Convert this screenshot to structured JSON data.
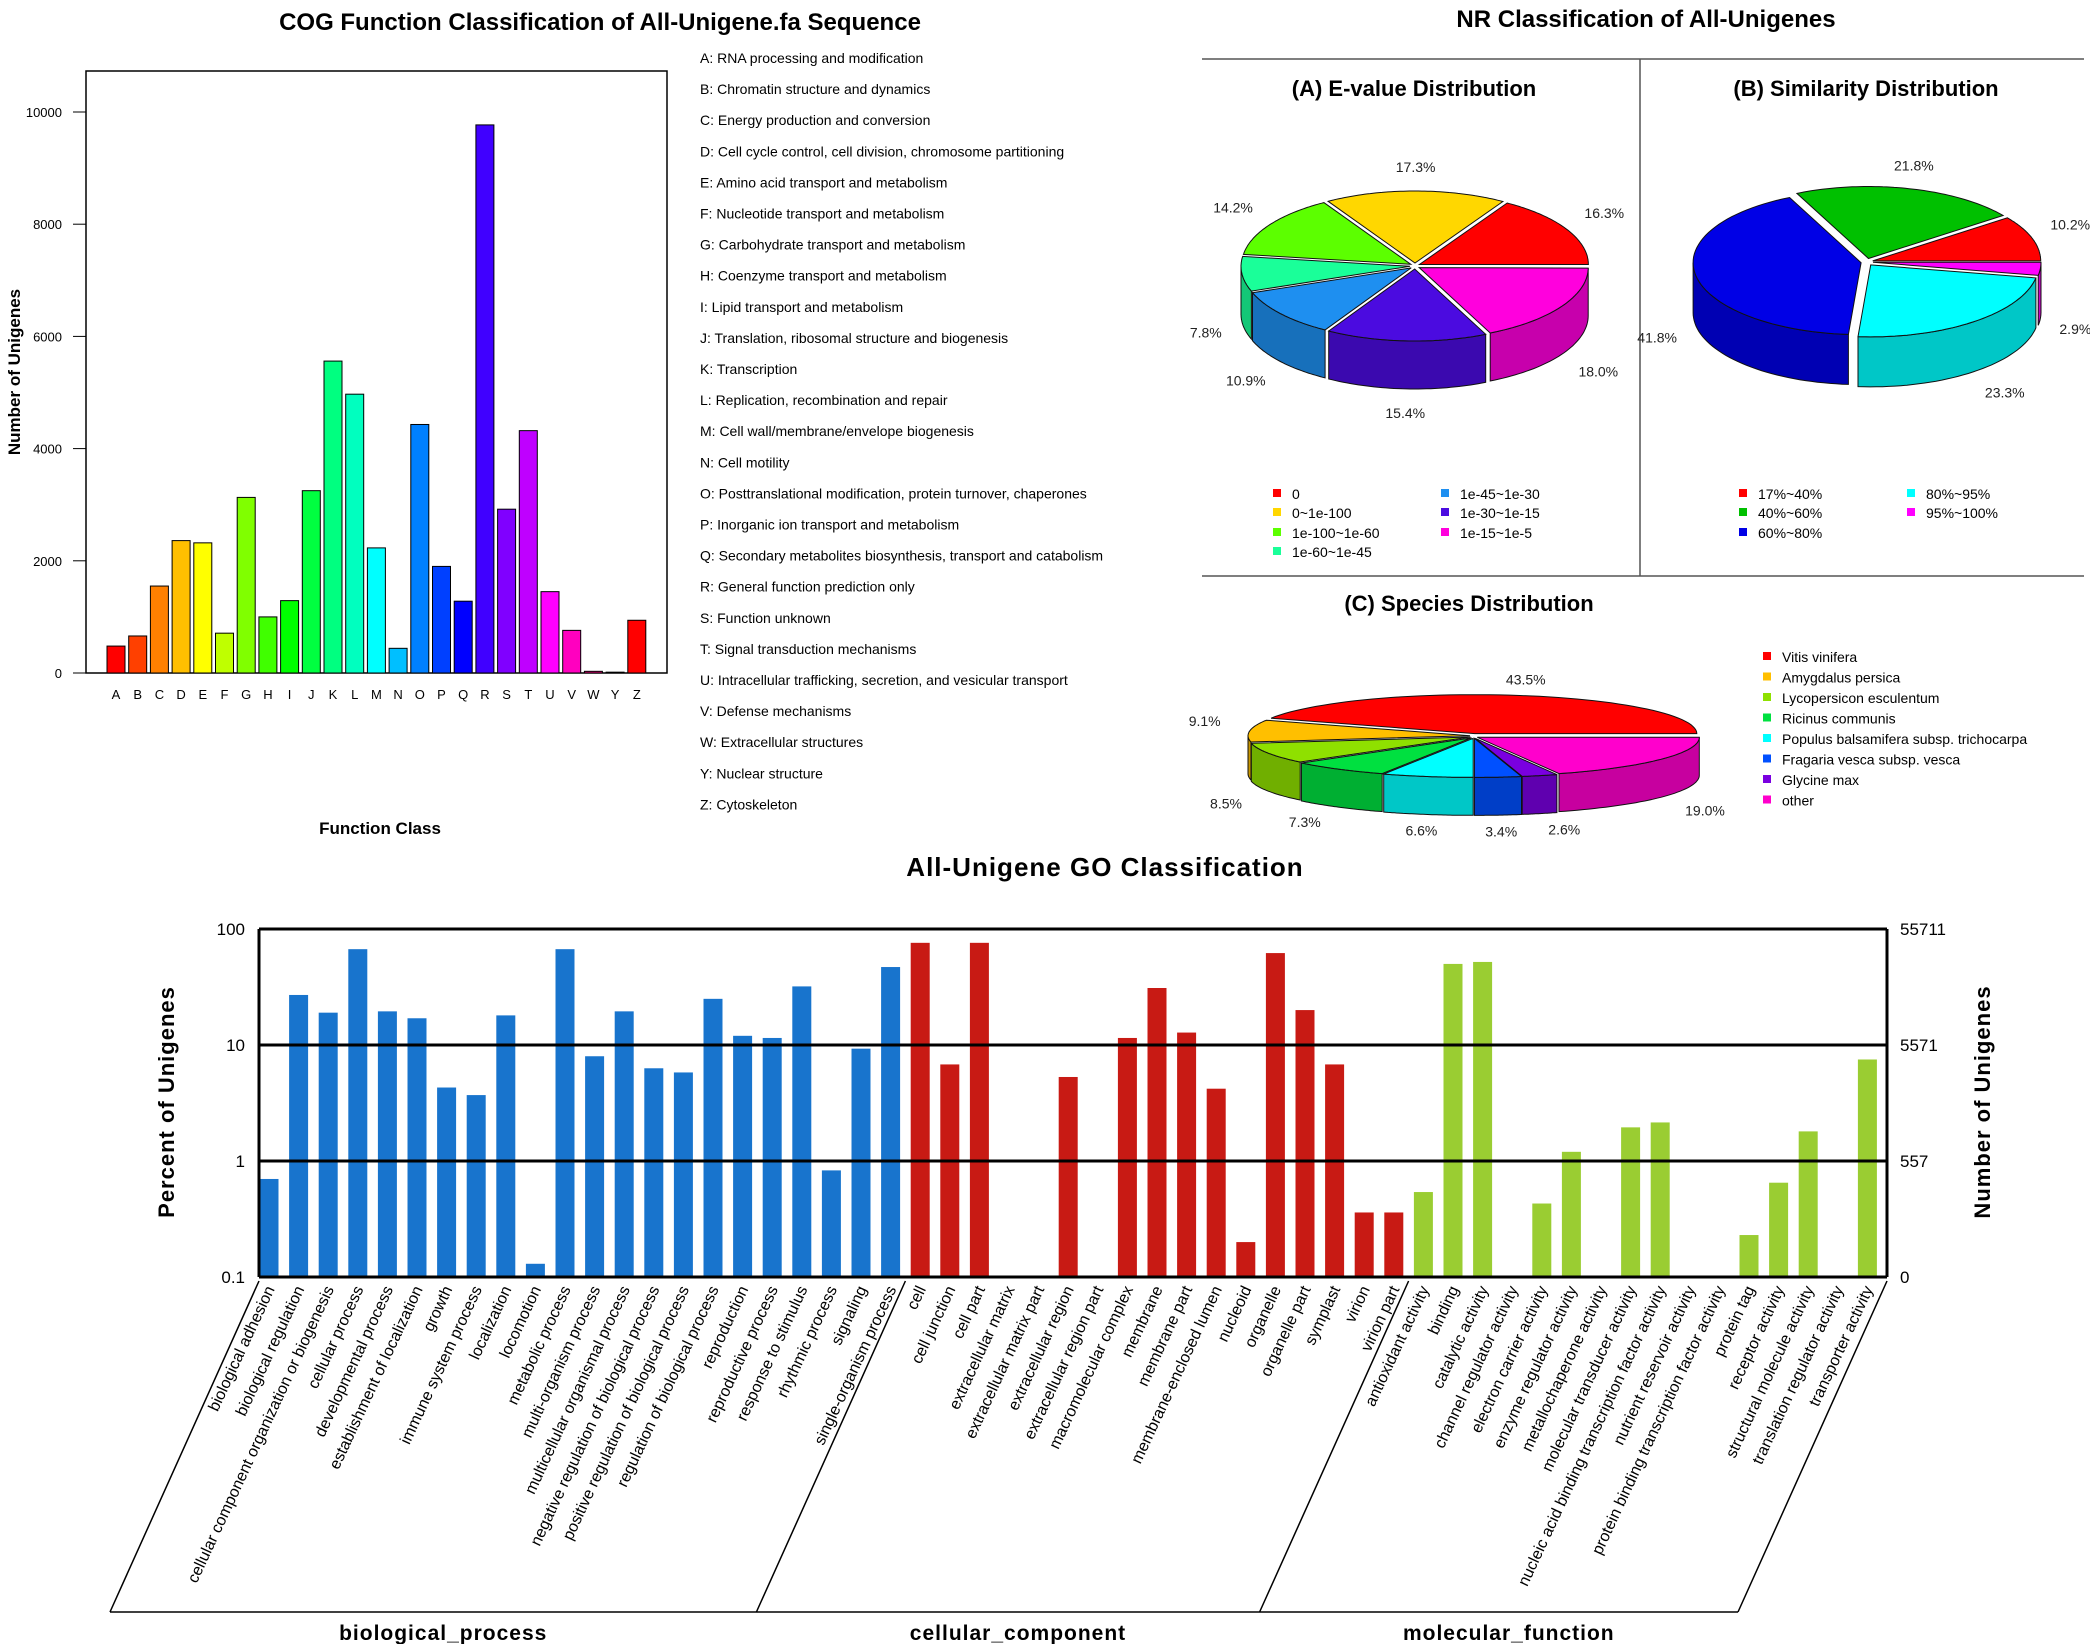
{
  "nr_title": "NR Classification of All-Unigenes",
  "chart_data": [
    {
      "type": "bar",
      "title": "COG Function Classification of All-Unigene.fa Sequence",
      "xlabel": "Function Class",
      "ylabel": "Number of Unigenes",
      "ylim": [
        0,
        10800
      ],
      "yticks": [
        "0",
        "2000",
        "4000",
        "6000",
        "8000",
        "10000"
      ],
      "categories": [
        "A",
        "B",
        "C",
        "D",
        "E",
        "F",
        "G",
        "H",
        "I",
        "J",
        "K",
        "L",
        "M",
        "N",
        "O",
        "P",
        "Q",
        "R",
        "S",
        "T",
        "U",
        "V",
        "W",
        "Y",
        "Z"
      ],
      "values": [
        480,
        660,
        1550,
        2360,
        2320,
        710,
        3130,
        1000,
        1290,
        3250,
        5560,
        4970,
        2230,
        440,
        4430,
        1900,
        1280,
        9770,
        2920,
        4320,
        1450,
        760,
        30,
        15,
        940
      ],
      "colors": [
        "#ff0000",
        "#ff4000",
        "#ff8000",
        "#ffbf00",
        "#ffff00",
        "#bfff00",
        "#80ff00",
        "#40ff00",
        "#00ff00",
        "#00ff40",
        "#00ff80",
        "#00ffbf",
        "#00ffff",
        "#00bfff",
        "#0080ff",
        "#0040ff",
        "#0000ff",
        "#4000ff",
        "#8000ff",
        "#bf00ff",
        "#ff00ff",
        "#ff00bf",
        "#ff0080",
        "#ff0040",
        "#ff0000"
      ],
      "legend": [
        "A: RNA processing and modification",
        "B: Chromatin structure and dynamics",
        "C: Energy production and conversion",
        "D: Cell cycle control, cell division, chromosome partitioning",
        "E: Amino acid transport and metabolism",
        "F: Nucleotide transport and metabolism",
        "G: Carbohydrate transport and metabolism",
        "H: Coenzyme transport and metabolism",
        "I: Lipid transport and metabolism",
        "J: Translation, ribosomal structure and biogenesis",
        "K: Transcription",
        "L: Replication, recombination and repair",
        "M: Cell wall/membrane/envelope biogenesis",
        "N: Cell motility",
        "O: Posttranslational modification, protein turnover, chaperones",
        "P: Inorganic ion transport and metabolism",
        "Q: Secondary metabolites biosynthesis, transport and catabolism",
        "R: General function prediction only",
        "S: Function unknown",
        "T: Signal transduction mechanisms",
        "U: Intracellular trafficking, secretion, and vesicular transport",
        "V: Defense mechanisms",
        "W: Extracellular structures",
        "Y: Nuclear structure",
        "Z: Cytoskeleton"
      ]
    },
    {
      "type": "pie",
      "title": "(A) E-value Distribution",
      "labels": [
        "0",
        "0~1e-100",
        "1e-100~1e-60",
        "1e-60~1e-45",
        "1e-45~1e-30",
        "1e-30~1e-15",
        "1e-15~1e-5"
      ],
      "values": [
        16.3,
        17.3,
        14.2,
        7.8,
        10.9,
        15.4,
        18.0
      ],
      "value_labels": [
        "16.3%",
        "17.3%",
        "14.2%",
        "7.8%",
        "10.9%",
        "15.4%",
        "18.0%"
      ],
      "colors": [
        "#ff0000",
        "#ffd700",
        "#5cff00",
        "#1aff99",
        "#1e8ff0",
        "#4b0be0",
        "#ff00dd"
      ]
    },
    {
      "type": "pie",
      "title": "(B) Similarity Distribution",
      "labels": [
        "17%~40%",
        "40%~60%",
        "60%~80%",
        "80%~95%",
        "95%~100%"
      ],
      "values": [
        10.2,
        21.8,
        41.8,
        23.3,
        2.9
      ],
      "value_labels": [
        "10.2%",
        "21.8%",
        "41.8%",
        "23.3%",
        "2.9%"
      ],
      "colors": [
        "#ff0000",
        "#00c000",
        "#0000e6",
        "#00ffff",
        "#ff00ff"
      ]
    },
    {
      "type": "pie",
      "title": "(C) Species Distribution",
      "labels": [
        "Vitis vinifera",
        "Amygdalus persica",
        "Lycopersicon esculentum",
        "Ricinus communis",
        "Populus balsamifera subsp. trichocarpa",
        "Fragaria vesca subsp. vesca",
        "Glycine max",
        "other"
      ],
      "values": [
        43.5,
        9.1,
        8.5,
        7.3,
        6.6,
        3.4,
        2.6,
        19.0
      ],
      "value_labels": [
        "43.5%",
        "9.1%",
        "8.5%",
        "7.3%",
        "6.6%",
        "3.4%",
        "2.6%",
        "19.0%"
      ],
      "colors": [
        "#ff0000",
        "#ffbf00",
        "#8fe000",
        "#00e040",
        "#00ffff",
        "#0050ff",
        "#7a00e0",
        "#ff00cc"
      ]
    },
    {
      "type": "bar",
      "title": "All-Unigene GO Classification",
      "yscale": "log",
      "ylim": [
        0.1,
        100
      ],
      "ylabel_left": "Percent of Unigenes",
      "ylabel_right": "Number of Unigenes",
      "yticks_left": [
        "100",
        "10",
        "1",
        "0.1"
      ],
      "yticks_right": [
        "55711",
        "5571",
        "557",
        "0"
      ],
      "groups": [
        {
          "name": "biological_process",
          "color": "#1874cd",
          "categories": [
            "biological adhesion",
            "biological regulation",
            "cellular component organization or biogenesis",
            "cellular process",
            "developmental process",
            "establishment of localization",
            "growth",
            "immune system process",
            "localization",
            "locomotion",
            "metabolic process",
            "multi-organism process",
            "multicellular organismal process",
            "negative regulation of biological process",
            "positive regulation of biological process",
            "regulation of biological process",
            "reproduction",
            "reproductive process",
            "response to stimulus",
            "rhythmic process",
            "signaling",
            "single-organism process"
          ],
          "values": [
            0.7,
            27,
            19,
            67,
            19.5,
            17,
            4.3,
            3.7,
            18,
            0.13,
            67,
            8,
            19.5,
            6.3,
            5.8,
            25,
            12,
            11.5,
            32,
            0.83,
            9.3,
            47
          ]
        },
        {
          "name": "cellular_component",
          "color": "#c81a14",
          "categories": [
            "cell",
            "cell junction",
            "cell part",
            "extracellular matrix",
            "extracellular matrix part",
            "extracellular region",
            "extracellular region part",
            "macromolecular complex",
            "membrane",
            "membrane part",
            "membrane-enclosed lumen",
            "nucleoid",
            "organelle",
            "organelle part",
            "symplast",
            "virion",
            "virion part"
          ],
          "values": [
            76,
            6.8,
            76,
            0,
            0,
            5.3,
            0,
            11.5,
            31,
            12.8,
            4.2,
            0.2,
            62,
            20,
            6.8,
            0.36,
            0.36
          ]
        },
        {
          "name": "molecular_function",
          "color": "#9acd32",
          "categories": [
            "antioxidant activity",
            "binding",
            "catalytic activity",
            "channel regulator activity",
            "electron carrier activity",
            "enzyme regulator activity",
            "metallochaperone activity",
            "molecular transducer activity",
            "nucleic acid binding transcription factor activity",
            "nutrient reservoir activity",
            "protein binding transcription factor activity",
            "protein tag",
            "receptor activity",
            "structural molecule activity",
            "translation regulator activity",
            "transporter activity"
          ],
          "values": [
            0.54,
            50,
            52,
            0,
            0.43,
            1.2,
            0,
            1.95,
            2.15,
            0,
            0,
            0.23,
            0.65,
            1.8,
            0,
            7.5
          ]
        }
      ]
    }
  ]
}
